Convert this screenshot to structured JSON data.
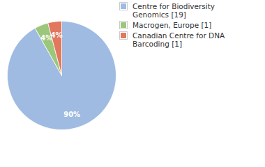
{
  "chart_data": {
    "type": "pie",
    "categories": [
      "Centre for Biodiversity Genomics [19]",
      "Macrogen, Europe [1]",
      "Canadian Centre for DNA Barcoding [1]"
    ],
    "values": [
      90,
      4,
      4
    ],
    "value_labels": [
      "90%",
      "4%",
      "4%"
    ],
    "colors": [
      "#9fbbe1",
      "#9cc67a",
      "#e0775e"
    ],
    "data_labels": true,
    "legend": "right"
  }
}
